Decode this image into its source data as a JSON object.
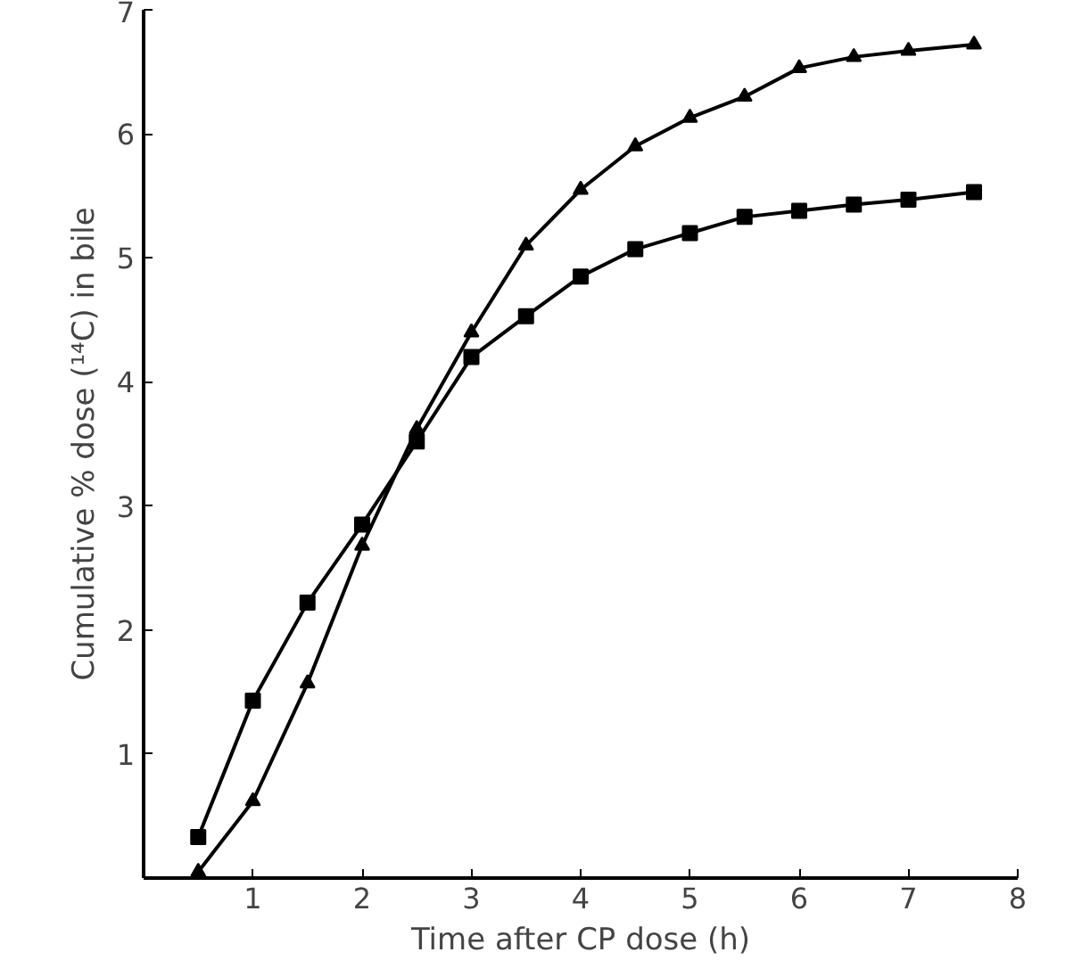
{
  "chart_data": {
    "type": "line",
    "xlabel": "Time after CP dose (h)",
    "ylabel": "Cumulative % dose (¹⁴C) in bile",
    "xlim": [
      0,
      8
    ],
    "ylim": [
      0,
      7
    ],
    "xticks": [
      1,
      2,
      3,
      4,
      5,
      6,
      7,
      8
    ],
    "yticks": [
      1,
      2,
      3,
      4,
      5,
      6,
      7
    ],
    "grid": false,
    "x": [
      0.5,
      1,
      1.5,
      2,
      2.5,
      3,
      3.5,
      4,
      4.5,
      5,
      5.5,
      6,
      6.5,
      7,
      7.6
    ],
    "series": [
      {
        "color": "#000000",
        "marker": "triangle",
        "values": [
          0.05,
          0.62,
          1.57,
          2.68,
          3.62,
          4.4,
          5.1,
          5.55,
          5.9,
          6.13,
          6.3,
          6.53,
          6.62,
          6.67,
          6.72
        ]
      },
      {
        "color": "#000000",
        "marker": "square",
        "values": [
          0.33,
          1.43,
          2.22,
          2.85,
          3.52,
          4.2,
          4.53,
          4.85,
          5.07,
          5.2,
          5.33,
          5.38,
          5.43,
          5.47,
          5.53
        ]
      }
    ]
  }
}
